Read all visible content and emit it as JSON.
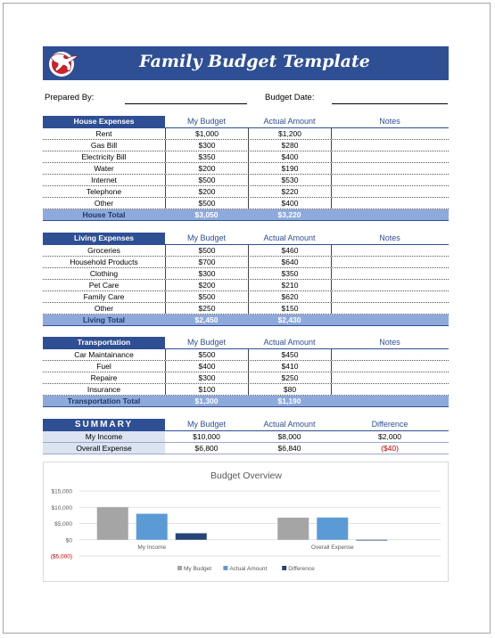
{
  "title": "Family Budget Template",
  "prepared_by_label": "Prepared By:",
  "budget_date_label": "Budget Date:",
  "columns": {
    "my_budget": "My Budget",
    "actual": "Actual Amount",
    "notes": "Notes",
    "difference": "Difference"
  },
  "house": {
    "title": "House Expenses",
    "items": [
      {
        "label": "Rent",
        "budget": "$1,000",
        "actual": "$1,200"
      },
      {
        "label": "Gas Bill",
        "budget": "$300",
        "actual": "$280"
      },
      {
        "label": "Electricity Bill",
        "budget": "$350",
        "actual": "$400"
      },
      {
        "label": "Water",
        "budget": "$200",
        "actual": "$190"
      },
      {
        "label": "Internet",
        "budget": "$500",
        "actual": "$530"
      },
      {
        "label": "Telephone",
        "budget": "$200",
        "actual": "$220"
      },
      {
        "label": "Other",
        "budget": "$500",
        "actual": "$400"
      }
    ],
    "total": {
      "label": "House Total",
      "budget": "$3,050",
      "actual": "$3,220"
    }
  },
  "living": {
    "title": "Living Expenses",
    "items": [
      {
        "label": "Groceries",
        "budget": "$500",
        "actual": "$460"
      },
      {
        "label": "Household Products",
        "budget": "$700",
        "actual": "$640"
      },
      {
        "label": "Clothing",
        "budget": "$300",
        "actual": "$350"
      },
      {
        "label": "Pet Care",
        "budget": "$200",
        "actual": "$210"
      },
      {
        "label": "Family Care",
        "budget": "$500",
        "actual": "$620"
      },
      {
        "label": "Other",
        "budget": "$250",
        "actual": "$150"
      }
    ],
    "total": {
      "label": "Living Total",
      "budget": "$2,450",
      "actual": "$2,430"
    }
  },
  "transport": {
    "title": "Transportation",
    "items": [
      {
        "label": "Car Maintainance",
        "budget": "$500",
        "actual": "$450"
      },
      {
        "label": "Fuel",
        "budget": "$400",
        "actual": "$410"
      },
      {
        "label": "Repaire",
        "budget": "$300",
        "actual": "$250"
      },
      {
        "label": "Insurance",
        "budget": "$100",
        "actual": "$80"
      }
    ],
    "total": {
      "label": "Transportation Total",
      "budget": "$1,300",
      "actual": "$1,190"
    }
  },
  "summary": {
    "title": "SUMMARY",
    "rows": [
      {
        "label": "My Income",
        "budget": "$10,000",
        "actual": "$8,000",
        "difference": "$2,000",
        "negative": false
      },
      {
        "label": "Overall Expense",
        "budget": "$6,800",
        "actual": "$6,840",
        "difference": "($40)",
        "negative": true
      }
    ]
  },
  "colors": {
    "header_blue": "#2e4f94",
    "total_blue": "#8ea9db",
    "bar_budget": "#a5a5a5",
    "bar_actual": "#5b9bd5",
    "bar_diff": "#264478"
  },
  "chart_data": {
    "type": "bar",
    "title": "Budget Overview",
    "categories": [
      "My Income",
      "Overall Expense"
    ],
    "series": [
      {
        "name": "My Budget",
        "values": [
          10000,
          6800
        ],
        "color": "#a5a5a5"
      },
      {
        "name": "Actual Amount",
        "values": [
          8000,
          6840
        ],
        "color": "#5b9bd5"
      },
      {
        "name": "Difference",
        "values": [
          2000,
          -40
        ],
        "color": "#264478"
      }
    ],
    "yticks": [
      {
        "value": 15000,
        "label": "$15,000",
        "negative": false
      },
      {
        "value": 10000,
        "label": "$10,000",
        "negative": false
      },
      {
        "value": 5000,
        "label": "$5,000",
        "negative": false
      },
      {
        "value": 0,
        "label": "$0",
        "negative": false
      },
      {
        "value": -5000,
        "label": "($5,000)",
        "negative": true
      }
    ],
    "ylim": [
      -5000,
      15000
    ],
    "legend": "bottom",
    "grid": true
  }
}
